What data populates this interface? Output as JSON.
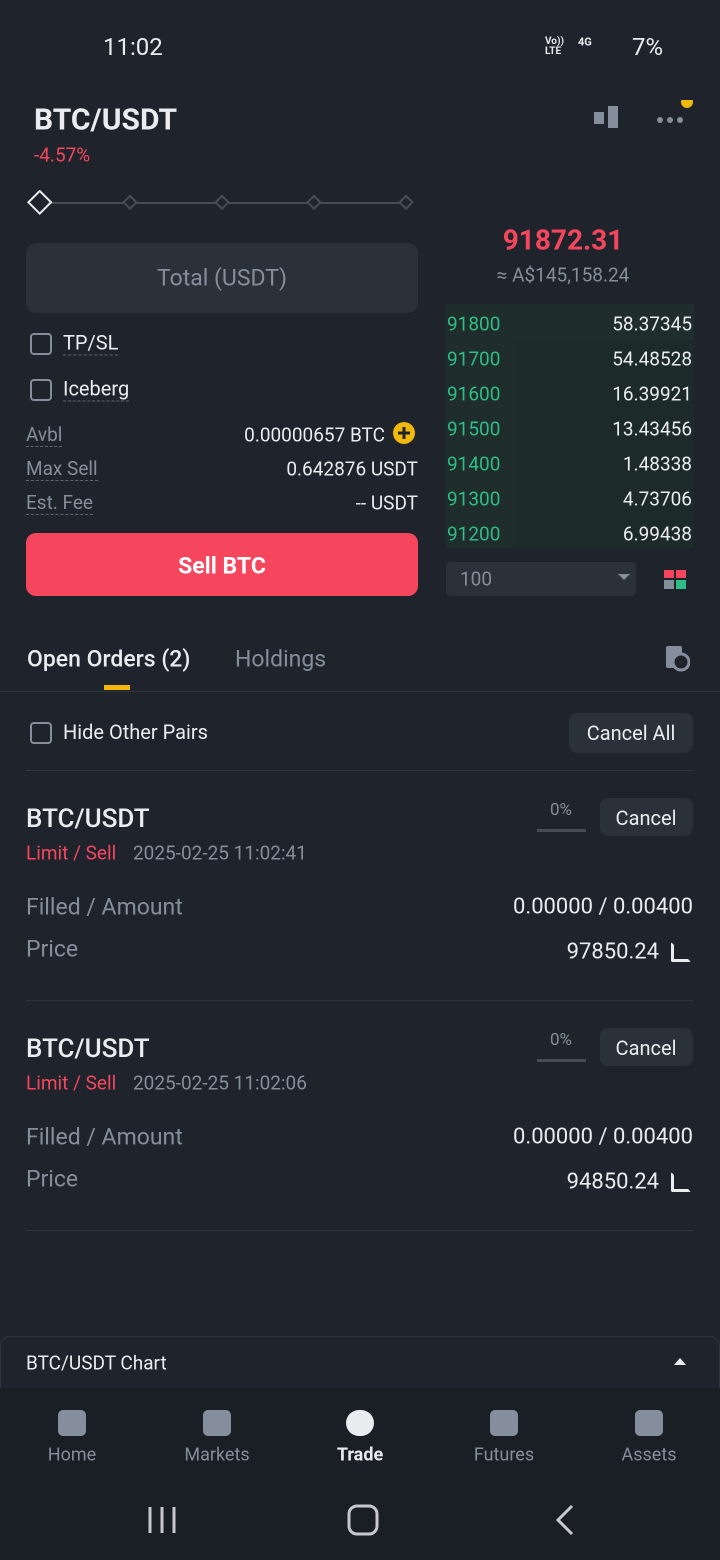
{
  "status_bar": {
    "time": "11:02",
    "network": "Vo)) LTE",
    "network_type": "4G",
    "battery": "7%"
  },
  "header": {
    "pair": "BTC/USDT",
    "change": "-4.57%"
  },
  "order_form": {
    "total_placeholder": "Total (USDT)",
    "options": [
      "TP/SL",
      "Iceberg"
    ],
    "info": [
      {
        "label": "Avbl",
        "value": "0.00000657 BTC"
      },
      {
        "label": "Max Sell",
        "value": "0.642876 USDT"
      },
      {
        "label": "Est. Fee",
        "value": "-- USDT"
      }
    ],
    "submit": "Sell BTC"
  },
  "order_book": {
    "last_price": "91872.31",
    "fiat_price": "≈ A$145,158.24",
    "bids": [
      {
        "price": "91800",
        "amount": "58.37345"
      },
      {
        "price": "91700",
        "amount": "54.48528"
      },
      {
        "price": "91600",
        "amount": "16.39921"
      },
      {
        "price": "91500",
        "amount": "13.43456"
      },
      {
        "price": "91400",
        "amount": "1.48338"
      },
      {
        "price": "91300",
        "amount": "4.73706"
      },
      {
        "price": "91200",
        "amount": "6.99438"
      }
    ],
    "depth": "100"
  },
  "tabs": [
    "Open Orders (2)",
    "Holdings"
  ],
  "filter": {
    "hide_other_pairs": "Hide Other Pairs",
    "cancel_all": "Cancel All"
  },
  "orders": [
    {
      "pair": "BTC/USDT",
      "type": "Limit / Sell",
      "time": "2025-02-25 11:02:41",
      "progress": "0%",
      "cancel": "Cancel",
      "filled_label": "Filled / Amount",
      "filled": "0.00000 / 0.00400",
      "price_label": "Price",
      "price": "97850.24"
    },
    {
      "pair": "BTC/USDT",
      "type": "Limit / Sell",
      "time": "2025-02-25 11:02:06",
      "progress": "0%",
      "cancel": "Cancel",
      "filled_label": "Filled / Amount",
      "filled": "0.00000 / 0.00400",
      "price_label": "Price",
      "price": "94850.24"
    }
  ],
  "chart_bar": "BTC/USDT Chart",
  "nav": [
    "Home",
    "Markets",
    "Trade",
    "Futures",
    "Assets"
  ]
}
